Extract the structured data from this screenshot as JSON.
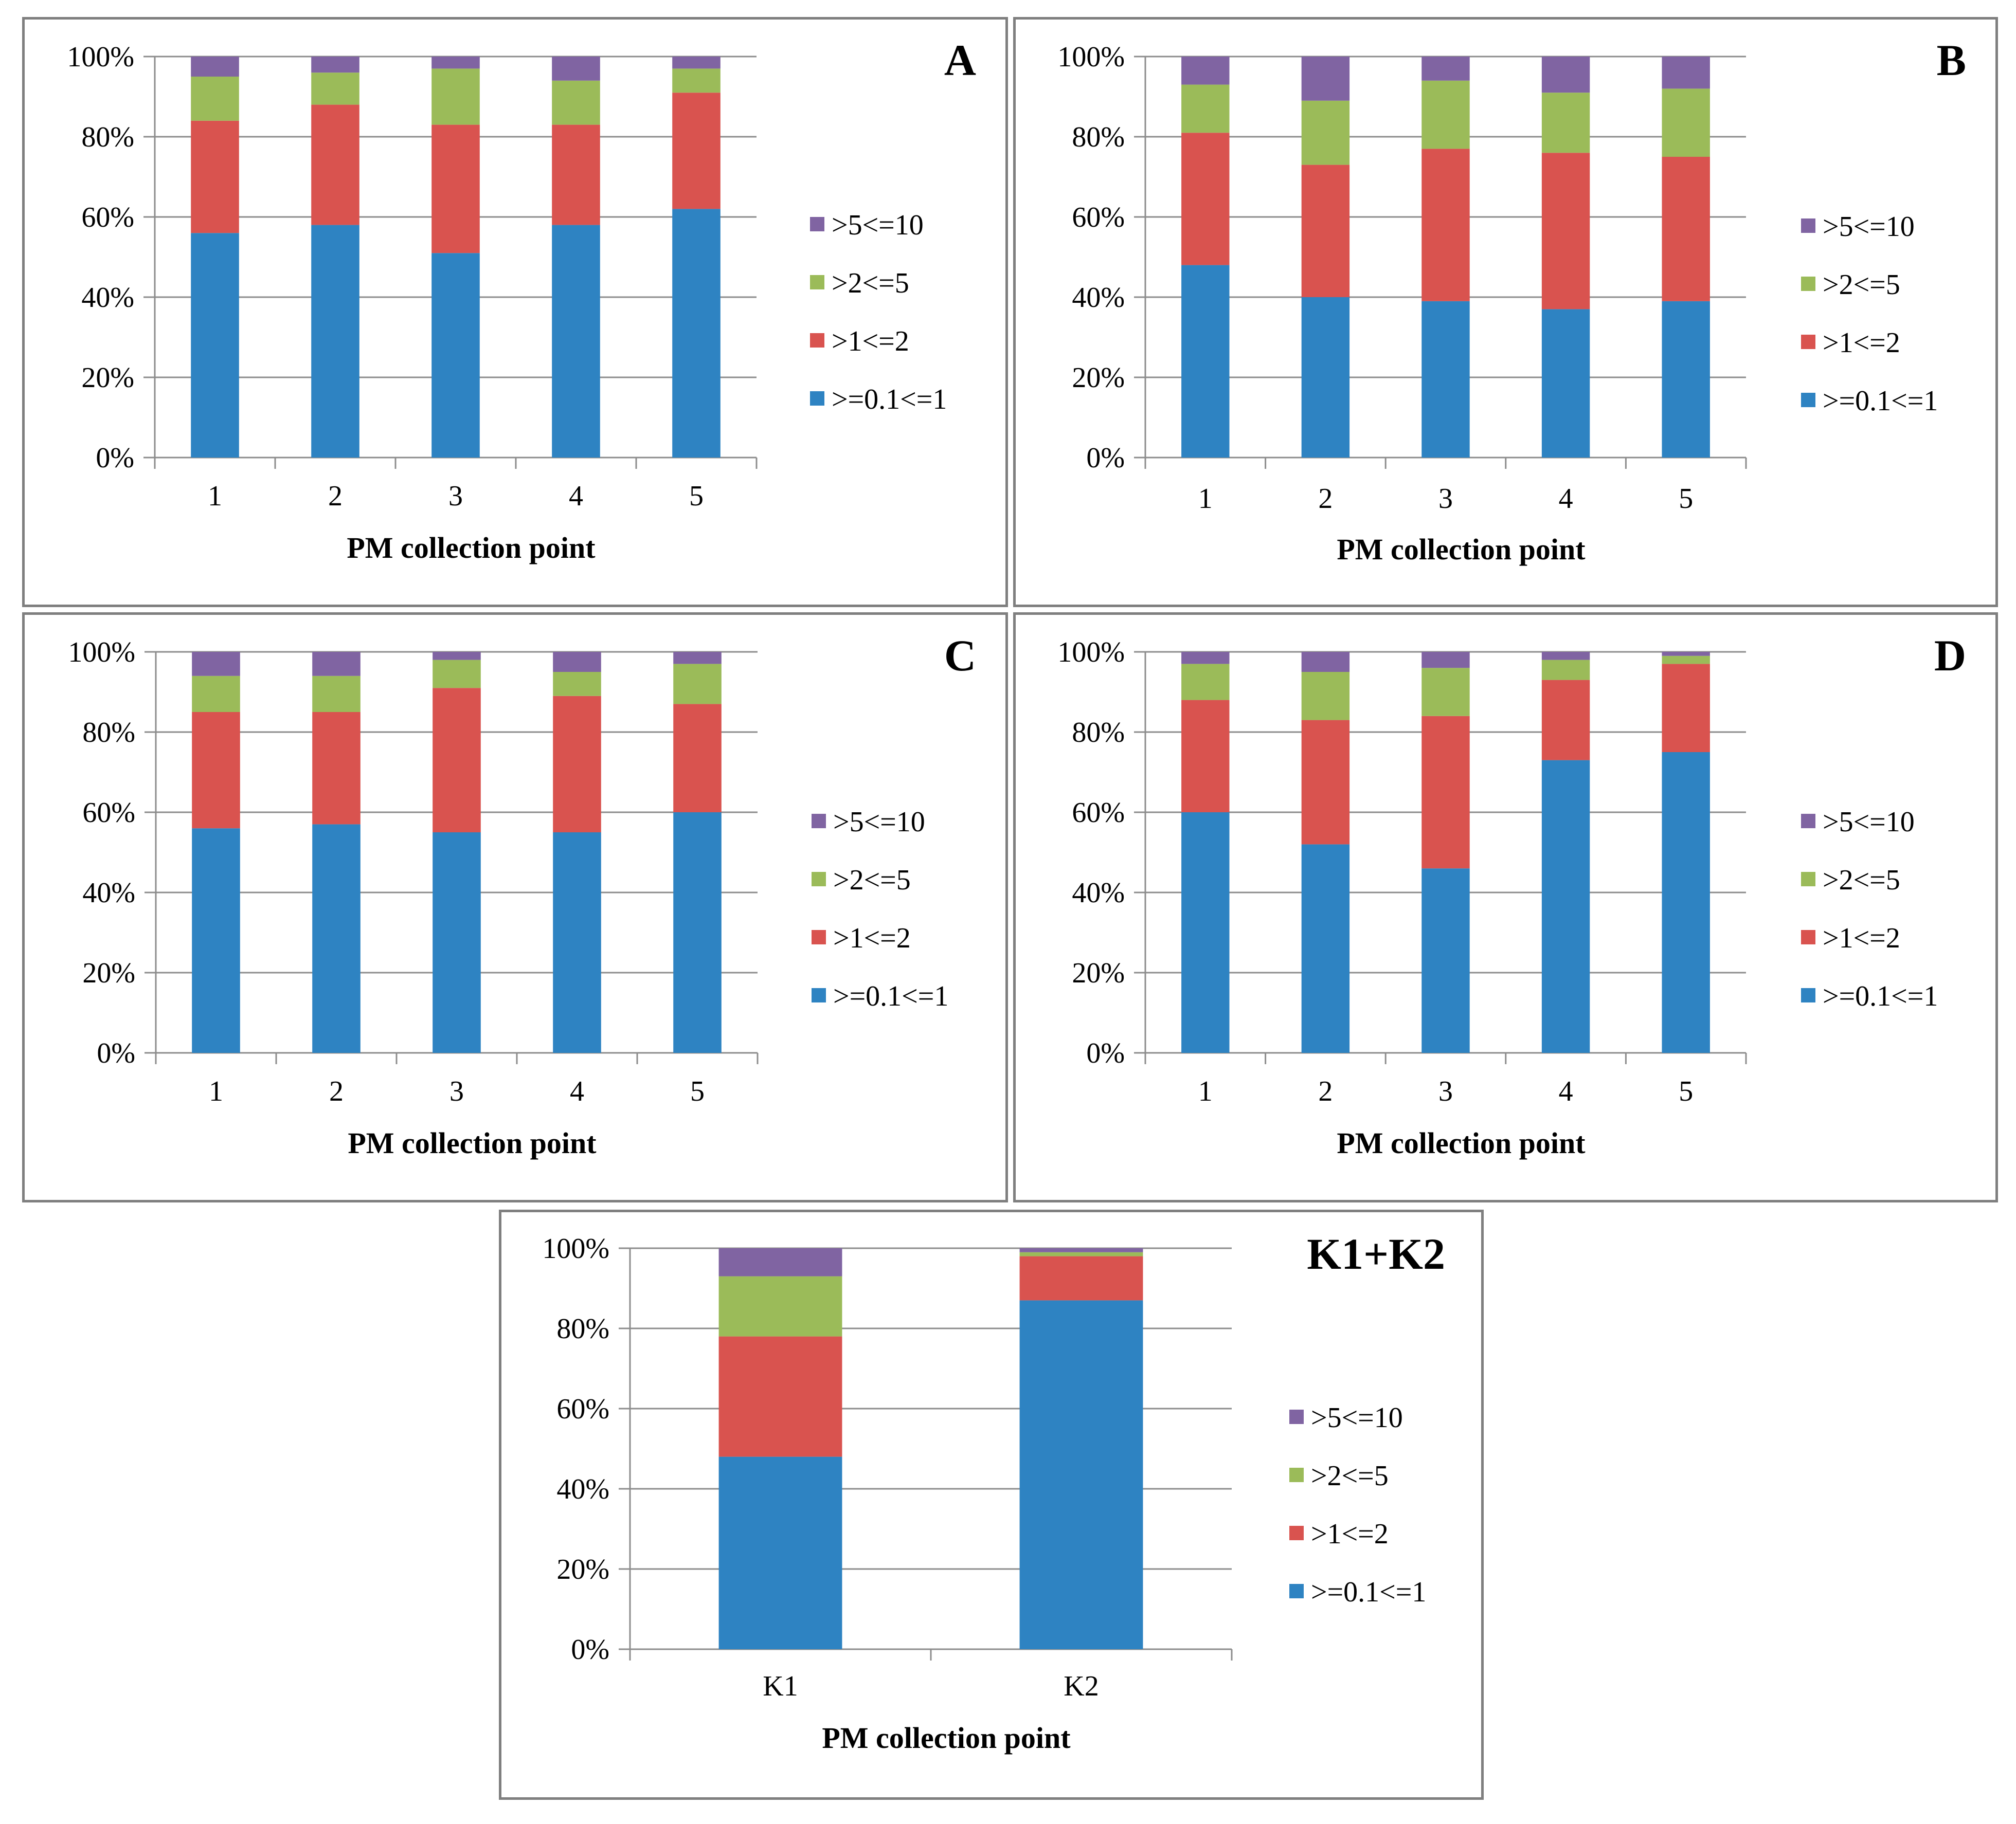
{
  "legend": [
    {
      "key": "s4",
      "label": ">5<=10",
      "color": "#8064a2"
    },
    {
      "key": "s3",
      "label": ">2<=5",
      "color": "#9bbb59"
    },
    {
      "key": "s2",
      "label": ">1<=2",
      "color": "#d9534f"
    },
    {
      "key": "s1",
      "label": ">=0.1<=1",
      "color": "#2e83c2"
    }
  ],
  "chart_data": [
    {
      "id": "A",
      "type": "bar",
      "stacked": "percent",
      "panel_label": "A",
      "xlabel": "PM collection point",
      "ylim": [
        0,
        100
      ],
      "yticks": [
        "0%",
        "20%",
        "40%",
        "60%",
        "80%",
        "100%"
      ],
      "categories": [
        "1",
        "2",
        "3",
        "4",
        "5"
      ],
      "series": [
        {
          "name": ">=0.1<=1",
          "color": "#2e83c2",
          "values": [
            56,
            58,
            51,
            58,
            62
          ]
        },
        {
          "name": ">1<=2",
          "color": "#d9534f",
          "values": [
            28,
            30,
            32,
            25,
            29
          ]
        },
        {
          "name": ">2<=5",
          "color": "#9bbb59",
          "values": [
            11,
            8,
            14,
            11,
            6
          ]
        },
        {
          "name": ">5<=10",
          "color": "#8064a2",
          "values": [
            5,
            4,
            3,
            6,
            3
          ]
        }
      ]
    },
    {
      "id": "B",
      "type": "bar",
      "stacked": "percent",
      "panel_label": "B",
      "xlabel": "PM collection point",
      "ylim": [
        0,
        100
      ],
      "yticks": [
        "0%",
        "20%",
        "40%",
        "60%",
        "80%",
        "100%"
      ],
      "categories": [
        "1",
        "2",
        "3",
        "4",
        "5"
      ],
      "series": [
        {
          "name": ">=0.1<=1",
          "color": "#2e83c2",
          "values": [
            48,
            40,
            39,
            37,
            39
          ]
        },
        {
          "name": ">1<=2",
          "color": "#d9534f",
          "values": [
            33,
            33,
            38,
            39,
            36
          ]
        },
        {
          "name": ">2<=5",
          "color": "#9bbb59",
          "values": [
            12,
            16,
            17,
            15,
            17
          ]
        },
        {
          "name": ">5<=10",
          "color": "#8064a2",
          "values": [
            7,
            11,
            6,
            9,
            8
          ]
        }
      ]
    },
    {
      "id": "C",
      "type": "bar",
      "stacked": "percent",
      "panel_label": "C",
      "xlabel": "PM collection point",
      "ylim": [
        0,
        100
      ],
      "yticks": [
        "0%",
        "20%",
        "40%",
        "60%",
        "80%",
        "100%"
      ],
      "categories": [
        "1",
        "2",
        "3",
        "4",
        "5"
      ],
      "series": [
        {
          "name": ">=0.1<=1",
          "color": "#2e83c2",
          "values": [
            56,
            57,
            55,
            55,
            60
          ]
        },
        {
          "name": ">1<=2",
          "color": "#d9534f",
          "values": [
            29,
            28,
            36,
            34,
            27
          ]
        },
        {
          "name": ">2<=5",
          "color": "#9bbb59",
          "values": [
            9,
            9,
            7,
            6,
            10
          ]
        },
        {
          "name": ">5<=10",
          "color": "#8064a2",
          "values": [
            6,
            6,
            2,
            5,
            3
          ]
        }
      ]
    },
    {
      "id": "D",
      "type": "bar",
      "stacked": "percent",
      "panel_label": "D",
      "xlabel": "PM collection point",
      "ylim": [
        0,
        100
      ],
      "yticks": [
        "0%",
        "20%",
        "40%",
        "60%",
        "80%",
        "100%"
      ],
      "categories": [
        "1",
        "2",
        "3",
        "4",
        "5"
      ],
      "series": [
        {
          "name": ">=0.1<=1",
          "color": "#2e83c2",
          "values": [
            60,
            52,
            46,
            73,
            75
          ]
        },
        {
          "name": ">1<=2",
          "color": "#d9534f",
          "values": [
            28,
            31,
            38,
            20,
            22
          ]
        },
        {
          "name": ">2<=5",
          "color": "#9bbb59",
          "values": [
            9,
            12,
            12,
            5,
            2
          ]
        },
        {
          "name": ">5<=10",
          "color": "#8064a2",
          "values": [
            3,
            5,
            4,
            2,
            1
          ]
        }
      ]
    },
    {
      "id": "K",
      "type": "bar",
      "stacked": "percent",
      "panel_label": "K1+K2",
      "xlabel": "PM collection point",
      "ylim": [
        0,
        100
      ],
      "yticks": [
        "0%",
        "20%",
        "40%",
        "60%",
        "80%",
        "100%"
      ],
      "categories": [
        "K1",
        "K2"
      ],
      "series": [
        {
          "name": ">=0.1<=1",
          "color": "#2e83c2",
          "values": [
            48,
            87
          ]
        },
        {
          "name": ">1<=2",
          "color": "#d9534f",
          "values": [
            30,
            11
          ]
        },
        {
          "name": ">2<=5",
          "color": "#9bbb59",
          "values": [
            15,
            1
          ]
        },
        {
          "name": ">5<=10",
          "color": "#8064a2",
          "values": [
            7,
            1
          ]
        }
      ]
    }
  ]
}
